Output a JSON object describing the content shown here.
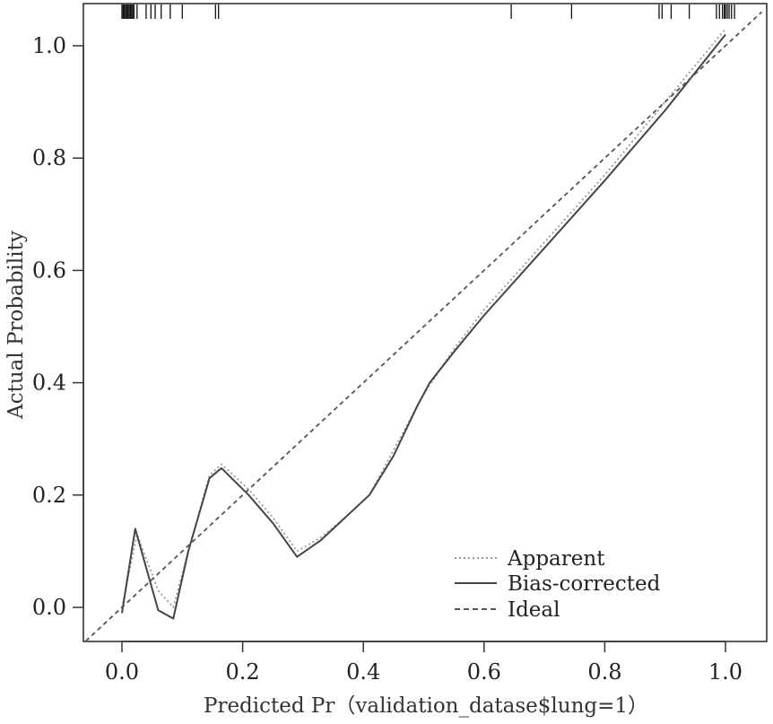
{
  "chart_data": {
    "type": "line",
    "xlabel": "Predicted Pr（validation_datase$lung=1）",
    "ylabel": "Actual Probability",
    "xlim": [
      -0.06,
      1.06
    ],
    "ylim": [
      -0.06,
      1.06
    ],
    "x_ticks": [
      "0.0",
      "0.2",
      "0.4",
      "0.6",
      "0.8",
      "1.0"
    ],
    "y_ticks": [
      "0.0",
      "0.2",
      "0.4",
      "0.6",
      "0.8",
      "1.0"
    ],
    "grid": false,
    "legend_position": "bottom-right",
    "series": [
      {
        "name": "Apparent",
        "style": "dotted",
        "color": "#999999",
        "x": [
          0.0,
          0.025,
          0.06,
          0.085,
          0.11,
          0.145,
          0.165,
          0.21,
          0.25,
          0.29,
          0.33,
          0.37,
          0.41,
          0.45,
          0.5,
          0.55,
          0.6,
          0.7,
          0.8,
          0.9,
          1.0
        ],
        "y": [
          0.0,
          0.13,
          0.03,
          0.0,
          0.1,
          0.235,
          0.255,
          0.21,
          0.16,
          0.1,
          0.125,
          0.16,
          0.2,
          0.28,
          0.38,
          0.46,
          0.53,
          0.65,
          0.77,
          0.9,
          1.03
        ]
      },
      {
        "name": "Bias-corrected",
        "style": "solid",
        "color": "#444444",
        "x": [
          0.0,
          0.022,
          0.06,
          0.085,
          0.11,
          0.145,
          0.165,
          0.21,
          0.25,
          0.29,
          0.33,
          0.37,
          0.41,
          0.45,
          0.49,
          0.51,
          0.55,
          0.6,
          0.7,
          0.8,
          0.9,
          1.0
        ],
        "y": [
          -0.01,
          0.14,
          -0.005,
          -0.02,
          0.1,
          0.23,
          0.248,
          0.2,
          0.15,
          0.09,
          0.12,
          0.16,
          0.2,
          0.27,
          0.36,
          0.4,
          0.455,
          0.52,
          0.64,
          0.76,
          0.885,
          1.02
        ]
      },
      {
        "name": "Ideal",
        "style": "dashed",
        "color": "#555555",
        "x": [
          -0.06,
          1.06
        ],
        "y": [
          -0.06,
          1.06
        ]
      }
    ],
    "rug_x": [
      0.0,
      0.002,
      0.004,
      0.006,
      0.008,
      0.01,
      0.012,
      0.014,
      0.016,
      0.018,
      0.02,
      0.025,
      0.04,
      0.048,
      0.055,
      0.065,
      0.08,
      0.1,
      0.155,
      0.16,
      0.645,
      0.745,
      0.89,
      0.895,
      0.91,
      0.94,
      0.985,
      0.99,
      0.995,
      0.998,
      1.0,
      1.003,
      1.006,
      1.01,
      1.015
    ]
  }
}
